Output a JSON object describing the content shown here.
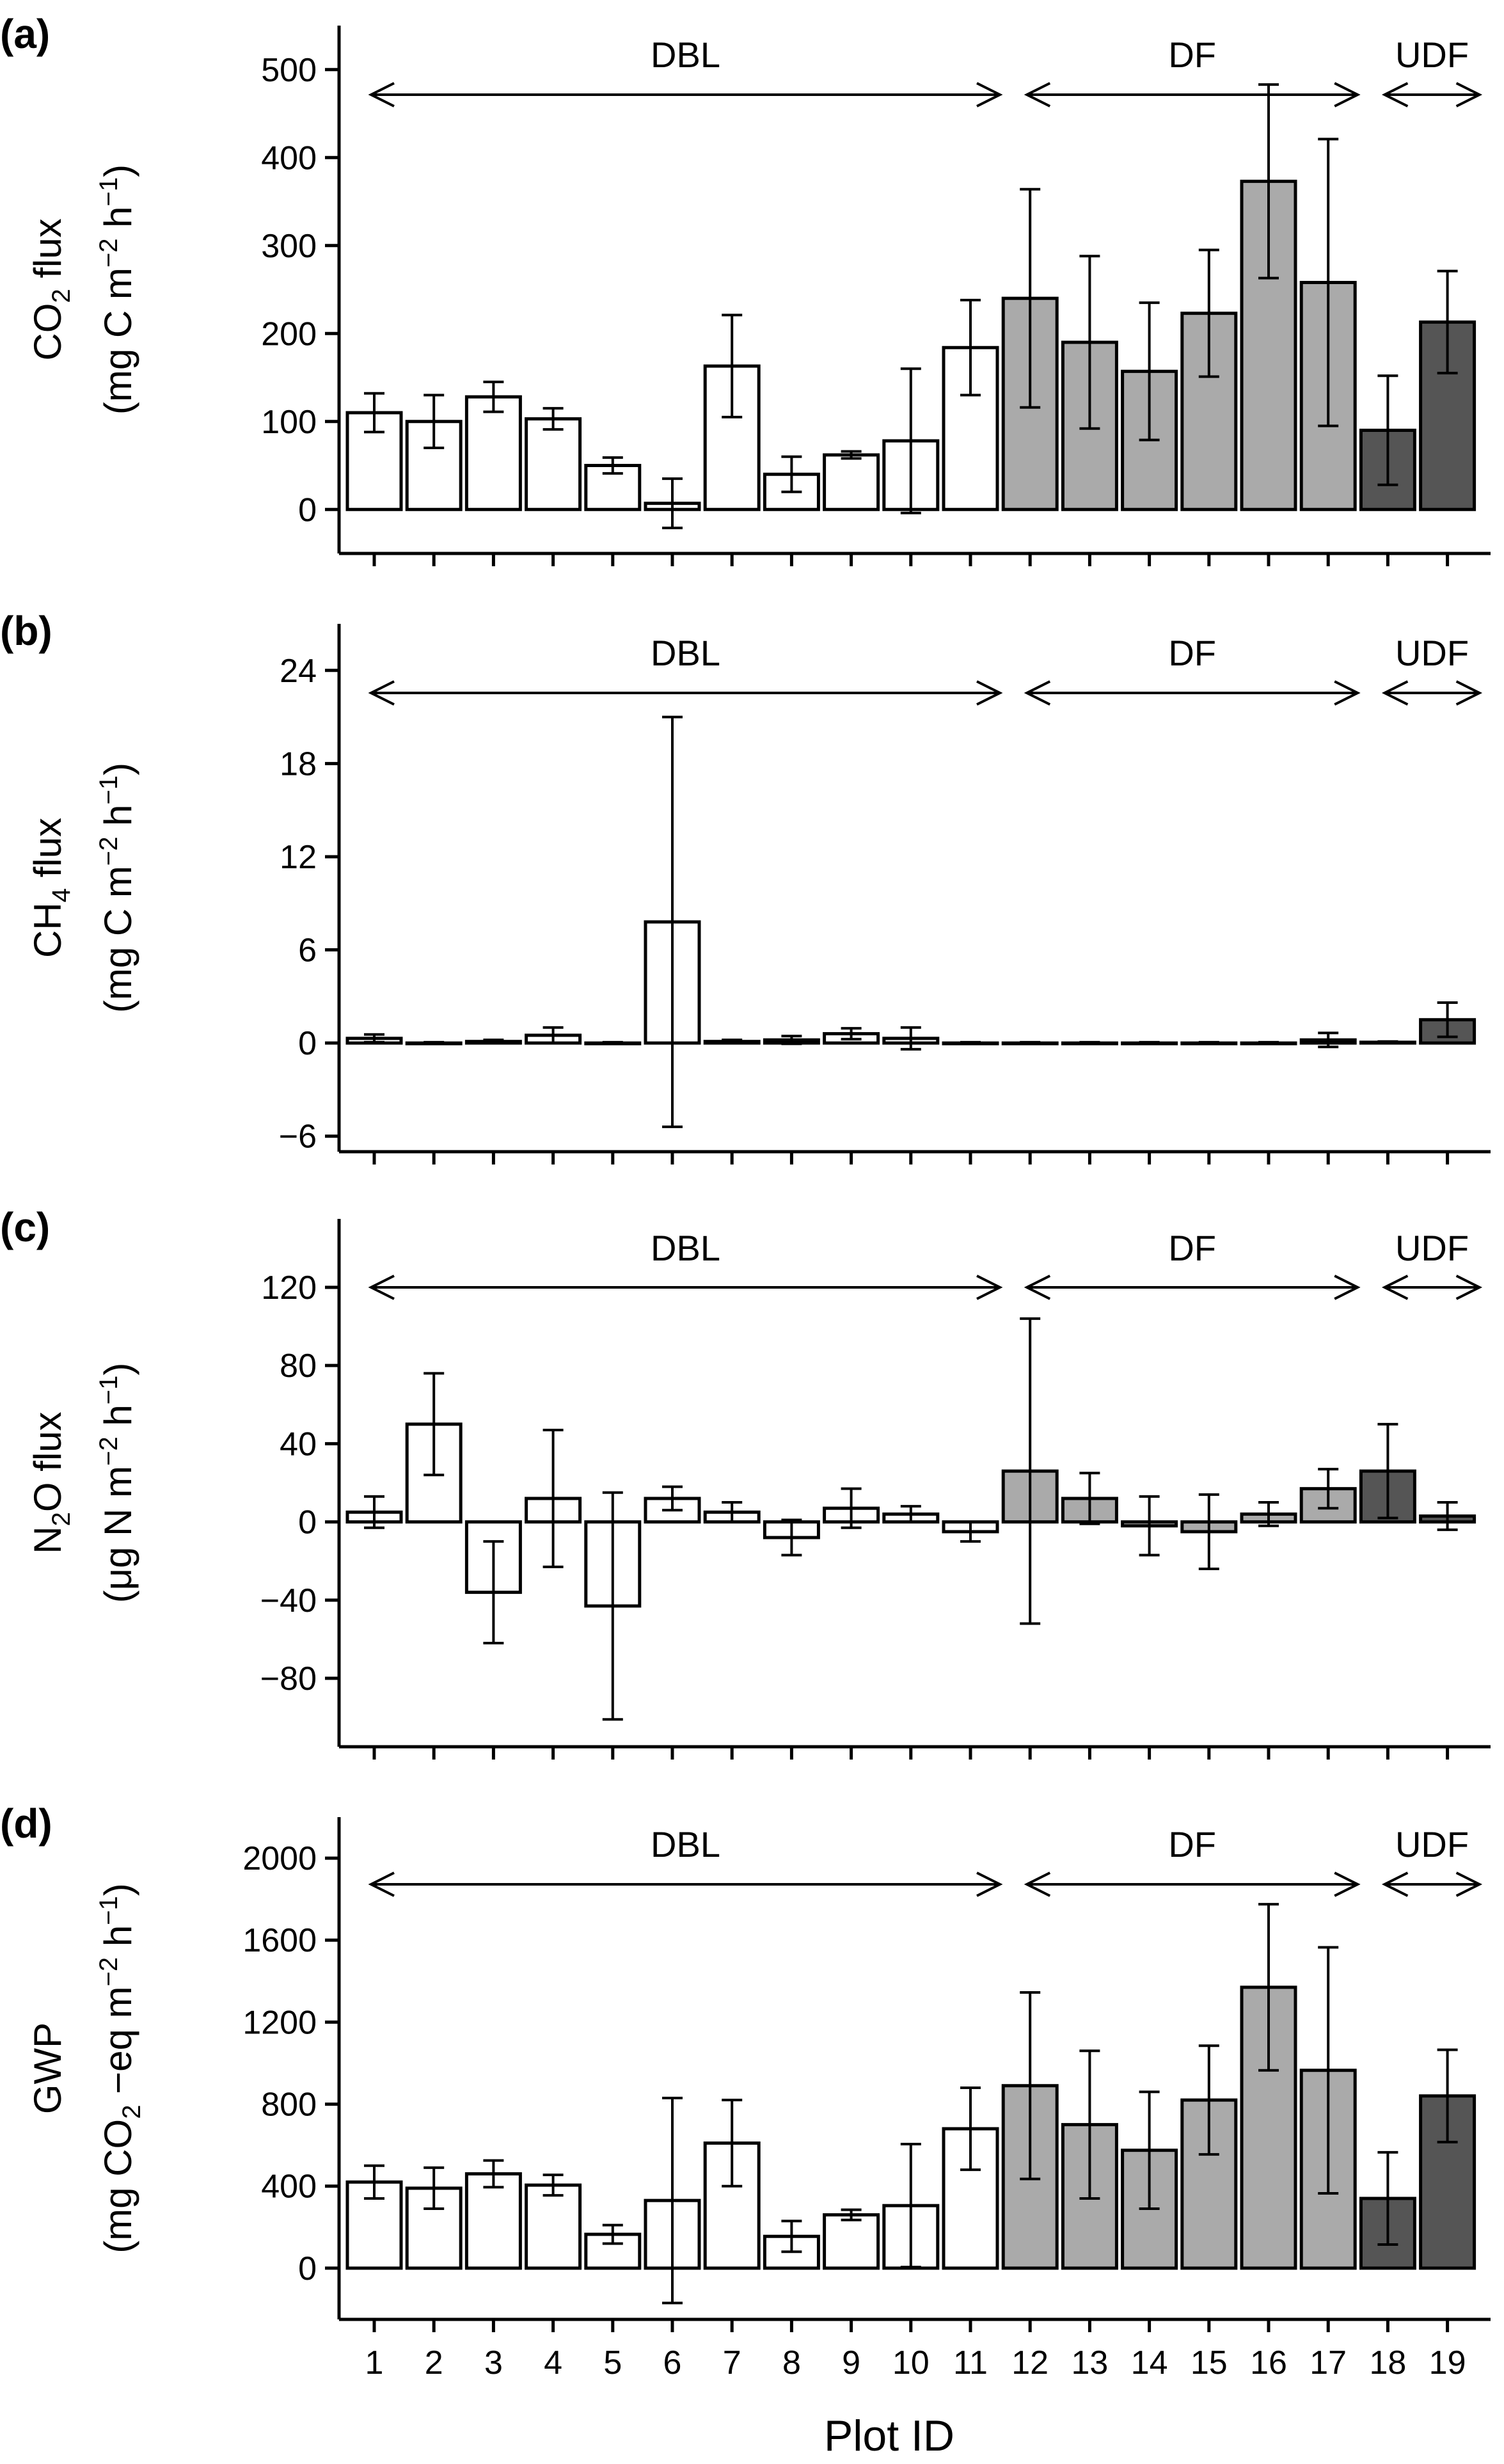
{
  "chart_data": {
    "type": "bar",
    "xlabel": "Plot ID",
    "categories": [
      "1",
      "2",
      "3",
      "4",
      "5",
      "6",
      "7",
      "8",
      "9",
      "10",
      "11",
      "12",
      "13",
      "14",
      "15",
      "16",
      "17",
      "18",
      "19"
    ],
    "groups": [
      {
        "name": "DBL",
        "from": 1,
        "to": 11,
        "color": "#ffffff"
      },
      {
        "name": "DF",
        "from": 12,
        "to": 17,
        "color": "#aaaaaa"
      },
      {
        "name": "UDF",
        "from": 18,
        "to": 19,
        "color": "#555555"
      }
    ],
    "panels": [
      {
        "label": "(a)",
        "ylabel_line1": [
          "CO",
          "2",
          " flux"
        ],
        "ylabel_line2": [
          "(mg C m",
          "−2",
          " h",
          "−1",
          ")"
        ],
        "yticks": [
          "500",
          "400",
          "300",
          "200",
          "100",
          "0"
        ],
        "ylim": [
          -50,
          550
        ],
        "values": [
          110,
          100,
          128,
          103,
          50,
          7,
          163,
          40,
          62,
          78,
          184,
          240,
          190,
          157,
          223,
          373,
          258,
          90,
          213
        ],
        "errors": [
          22,
          30,
          17,
          12,
          9,
          28,
          58,
          20,
          4,
          82,
          54,
          124,
          98,
          78,
          72,
          110,
          163,
          62,
          58
        ]
      },
      {
        "label": "(b)",
        "ylabel_line1": [
          "CH",
          "4",
          " flux"
        ],
        "ylabel_line2": [
          "(mg C m",
          "−2",
          " h",
          "−1",
          ")"
        ],
        "yticks": [
          "24",
          "18",
          "12",
          "6",
          "0",
          "−6"
        ],
        "ylim": [
          -7,
          27
        ],
        "values": [
          0.3,
          0,
          0.1,
          0.5,
          0,
          7.8,
          0.1,
          0.2,
          0.6,
          0.3,
          0,
          0,
          0,
          0,
          0,
          0,
          0.2,
          0.05,
          1.5
        ],
        "errors": [
          0.25,
          0.05,
          0.1,
          0.5,
          0.05,
          13.2,
          0.1,
          0.25,
          0.35,
          0.7,
          0.05,
          0.05,
          0.05,
          0.05,
          0.05,
          0.05,
          0.45,
          0.05,
          1.1
        ]
      },
      {
        "label": "(c)",
        "ylabel_line1": [
          "N",
          "2",
          "O flux"
        ],
        "ylabel_line2": [
          "(μg N m",
          "−2",
          " h",
          "−1",
          ")"
        ],
        "yticks": [
          "120",
          "80",
          "40",
          "0",
          "−40",
          "−80"
        ],
        "ylim": [
          -115,
          155
        ],
        "values": [
          5,
          50,
          -36,
          12,
          -43,
          12,
          5,
          -8,
          7,
          4,
          -5,
          26,
          12,
          -2,
          -5,
          4,
          17,
          26,
          3
        ],
        "errors": [
          8,
          26,
          26,
          35,
          58,
          6,
          5,
          9,
          10,
          4,
          5,
          78,
          13,
          15,
          19,
          6,
          10,
          24,
          7
        ]
      },
      {
        "label": "(d)",
        "ylabel_line1": [
          "GWP"
        ],
        "ylabel_line2": [
          "(mg CO",
          "2",
          " −eq m",
          "−2",
          " h",
          "−1",
          ")"
        ],
        "yticks": [
          "2000",
          "1600",
          "1200",
          "800",
          "400",
          "0"
        ],
        "ylim": [
          -250,
          2200
        ],
        "values": [
          420,
          390,
          460,
          405,
          165,
          330,
          610,
          155,
          260,
          305,
          680,
          890,
          700,
          575,
          820,
          1370,
          965,
          340,
          840
        ],
        "errors": [
          80,
          100,
          65,
          50,
          45,
          500,
          210,
          75,
          25,
          300,
          200,
          455,
          360,
          285,
          265,
          405,
          600,
          225,
          225
        ]
      }
    ]
  }
}
